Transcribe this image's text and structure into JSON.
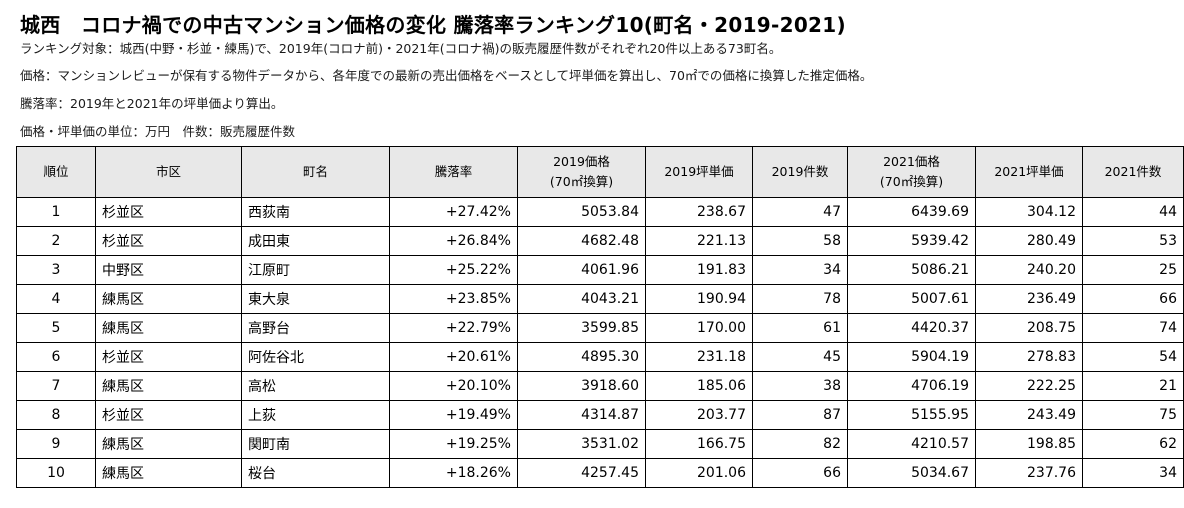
{
  "header": {
    "title": "城西　コロナ禍での中古マンション価格の変化 騰落率ランキング10(町名・2019-2021)",
    "notes": [
      "ランキング対象：城西(中野・杉並・練馬)で、2019年(コロナ前)・2021年(コロナ禍)の販売履歴件数がそれぞれ20件以上ある73町名。",
      "価格：マンションレビューが保有する物件データから、各年度での最新の売出価格をベースとして坪単価を算出し、70㎡での価格に換算した推定価格。",
      "騰落率：2019年と2021年の坪単価より算出。",
      "価格・坪単価の単位：万円　件数：販売履歴件数"
    ]
  },
  "table": {
    "columns": [
      {
        "line1": "順位",
        "line2": ""
      },
      {
        "line1": "市区",
        "line2": ""
      },
      {
        "line1": "町名",
        "line2": ""
      },
      {
        "line1": "騰落率",
        "line2": ""
      },
      {
        "line1": "2019価格",
        "line2": "(70㎡換算)"
      },
      {
        "line1": "2019坪単価",
        "line2": ""
      },
      {
        "line1": "2019件数",
        "line2": ""
      },
      {
        "line1": "2021価格",
        "line2": "(70㎡換算)"
      },
      {
        "line1": "2021坪単価",
        "line2": ""
      },
      {
        "line1": "2021件数",
        "line2": ""
      }
    ],
    "rows": [
      [
        "1",
        "杉並区",
        "西荻南",
        "+27.42%",
        "5053.84",
        "238.67",
        "47",
        "6439.69",
        "304.12",
        "44"
      ],
      [
        "2",
        "杉並区",
        "成田東",
        "+26.84%",
        "4682.48",
        "221.13",
        "58",
        "5939.42",
        "280.49",
        "53"
      ],
      [
        "3",
        "中野区",
        "江原町",
        "+25.22%",
        "4061.96",
        "191.83",
        "34",
        "5086.21",
        "240.20",
        "25"
      ],
      [
        "4",
        "練馬区",
        "東大泉",
        "+23.85%",
        "4043.21",
        "190.94",
        "78",
        "5007.61",
        "236.49",
        "66"
      ],
      [
        "5",
        "練馬区",
        "高野台",
        "+22.79%",
        "3599.85",
        "170.00",
        "61",
        "4420.37",
        "208.75",
        "74"
      ],
      [
        "6",
        "杉並区",
        "阿佐谷北",
        "+20.61%",
        "4895.30",
        "231.18",
        "45",
        "5904.19",
        "278.83",
        "54"
      ],
      [
        "7",
        "練馬区",
        "高松",
        "+20.10%",
        "3918.60",
        "185.06",
        "38",
        "4706.19",
        "222.25",
        "21"
      ],
      [
        "8",
        "杉並区",
        "上荻",
        "+19.49%",
        "4314.87",
        "203.77",
        "87",
        "5155.95",
        "243.49",
        "75"
      ],
      [
        "9",
        "練馬区",
        "関町南",
        "+19.25%",
        "3531.02",
        "166.75",
        "82",
        "4210.57",
        "198.85",
        "62"
      ],
      [
        "10",
        "練馬区",
        "桜台",
        "+18.26%",
        "4257.45",
        "201.06",
        "66",
        "5034.67",
        "237.76",
        "34"
      ]
    ]
  }
}
